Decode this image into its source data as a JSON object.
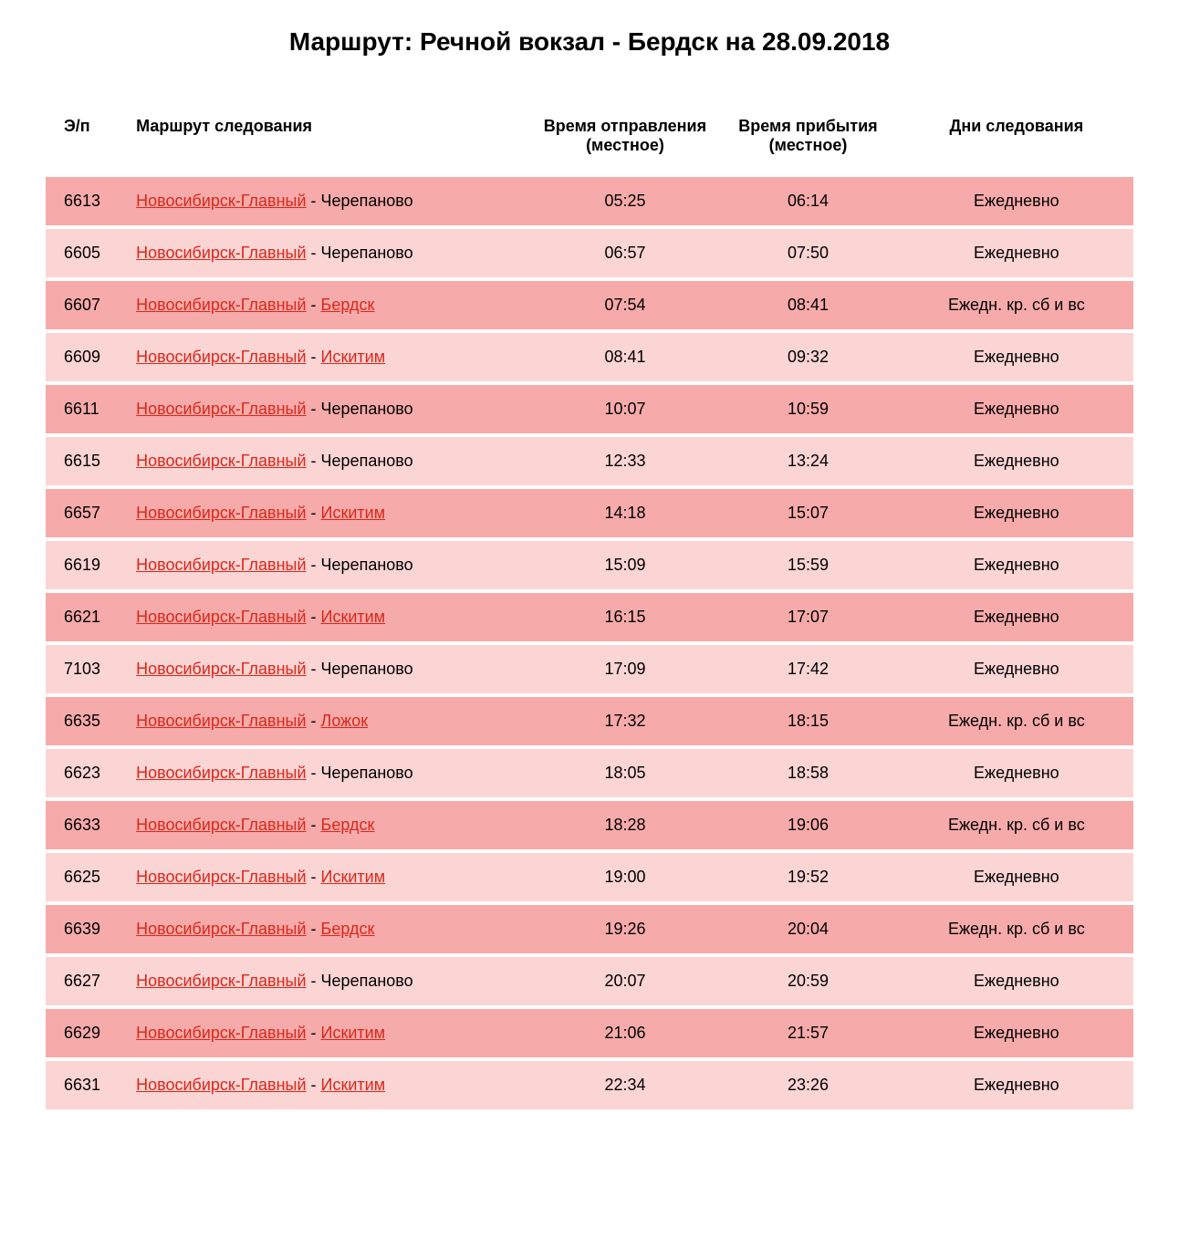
{
  "title": "Маршрут: Речной вокзал - Бердск на 28.09.2018",
  "columns": {
    "id": "Э/п",
    "route": "Маршрут следования",
    "departure": "Время отправления (местное)",
    "arrival": "Время прибытия (местное)",
    "days": "Дни следования"
  },
  "colors": {
    "row_odd": "#f7aaaa",
    "row_even": "#fbd4d4",
    "link": "#d9281a",
    "text": "#000000",
    "background": "#ffffff"
  },
  "typography": {
    "title_fontsize": 28,
    "header_fontsize": 18,
    "cell_fontsize": 18,
    "font_family": "Arial"
  },
  "rows": [
    {
      "id": "6613",
      "from": "Новосибирск-Главный",
      "from_link": true,
      "to": "Черепаново",
      "to_link": false,
      "dep": "05:25",
      "arr": "06:14",
      "days": "Ежедневно"
    },
    {
      "id": "6605",
      "from": "Новосибирск-Главный",
      "from_link": true,
      "to": "Черепаново",
      "to_link": false,
      "dep": "06:57",
      "arr": "07:50",
      "days": "Ежедневно"
    },
    {
      "id": "6607",
      "from": "Новосибирск-Главный",
      "from_link": true,
      "to": "Бердск",
      "to_link": true,
      "dep": "07:54",
      "arr": "08:41",
      "days": "Ежедн. кр. сб и вс"
    },
    {
      "id": "6609",
      "from": "Новосибирск-Главный",
      "from_link": true,
      "to": "Искитим",
      "to_link": true,
      "dep": "08:41",
      "arr": "09:32",
      "days": "Ежедневно"
    },
    {
      "id": "6611",
      "from": "Новосибирск-Главный",
      "from_link": true,
      "to": "Черепаново",
      "to_link": false,
      "dep": "10:07",
      "arr": "10:59",
      "days": "Ежедневно"
    },
    {
      "id": "6615",
      "from": "Новосибирск-Главный",
      "from_link": true,
      "to": "Черепаново",
      "to_link": false,
      "dep": "12:33",
      "arr": "13:24",
      "days": "Ежедневно"
    },
    {
      "id": "6657",
      "from": "Новосибирск-Главный",
      "from_link": true,
      "to": "Искитим",
      "to_link": true,
      "dep": "14:18",
      "arr": "15:07",
      "days": "Ежедневно"
    },
    {
      "id": "6619",
      "from": "Новосибирск-Главный",
      "from_link": true,
      "to": "Черепаново",
      "to_link": false,
      "dep": "15:09",
      "arr": "15:59",
      "days": "Ежедневно"
    },
    {
      "id": "6621",
      "from": "Новосибирск-Главный",
      "from_link": true,
      "to": "Искитим",
      "to_link": true,
      "dep": "16:15",
      "arr": "17:07",
      "days": "Ежедневно"
    },
    {
      "id": "7103",
      "from": "Новосибирск-Главный",
      "from_link": true,
      "to": "Черепаново",
      "to_link": false,
      "dep": "17:09",
      "arr": "17:42",
      "days": "Ежедневно"
    },
    {
      "id": "6635",
      "from": "Новосибирск-Главный",
      "from_link": true,
      "to": "Ложок",
      "to_link": true,
      "dep": "17:32",
      "arr": "18:15",
      "days": "Ежедн. кр. сб и вс"
    },
    {
      "id": "6623",
      "from": "Новосибирск-Главный",
      "from_link": true,
      "to": "Черепаново",
      "to_link": false,
      "dep": "18:05",
      "arr": "18:58",
      "days": "Ежедневно"
    },
    {
      "id": "6633",
      "from": "Новосибирск-Главный",
      "from_link": true,
      "to": "Бердск",
      "to_link": true,
      "dep": "18:28",
      "arr": "19:06",
      "days": "Ежедн. кр. сб и вс"
    },
    {
      "id": "6625",
      "from": "Новосибирск-Главный",
      "from_link": true,
      "to": "Искитим",
      "to_link": true,
      "dep": "19:00",
      "arr": "19:52",
      "days": "Ежедневно"
    },
    {
      "id": "6639",
      "from": "Новосибирск-Главный",
      "from_link": true,
      "to": "Бердск",
      "to_link": true,
      "dep": "19:26",
      "arr": "20:04",
      "days": "Ежедн. кр. сб и вс"
    },
    {
      "id": "6627",
      "from": "Новосибирск-Главный",
      "from_link": true,
      "to": "Черепаново",
      "to_link": false,
      "dep": "20:07",
      "arr": "20:59",
      "days": "Ежедневно"
    },
    {
      "id": "6629",
      "from": "Новосибирск-Главный",
      "from_link": true,
      "to": "Искитим",
      "to_link": true,
      "dep": "21:06",
      "arr": "21:57",
      "days": "Ежедневно"
    },
    {
      "id": "6631",
      "from": "Новосибирск-Главный",
      "from_link": true,
      "to": "Искитим",
      "to_link": true,
      "dep": "22:34",
      "arr": "23:26",
      "days": "Ежедневно"
    }
  ]
}
